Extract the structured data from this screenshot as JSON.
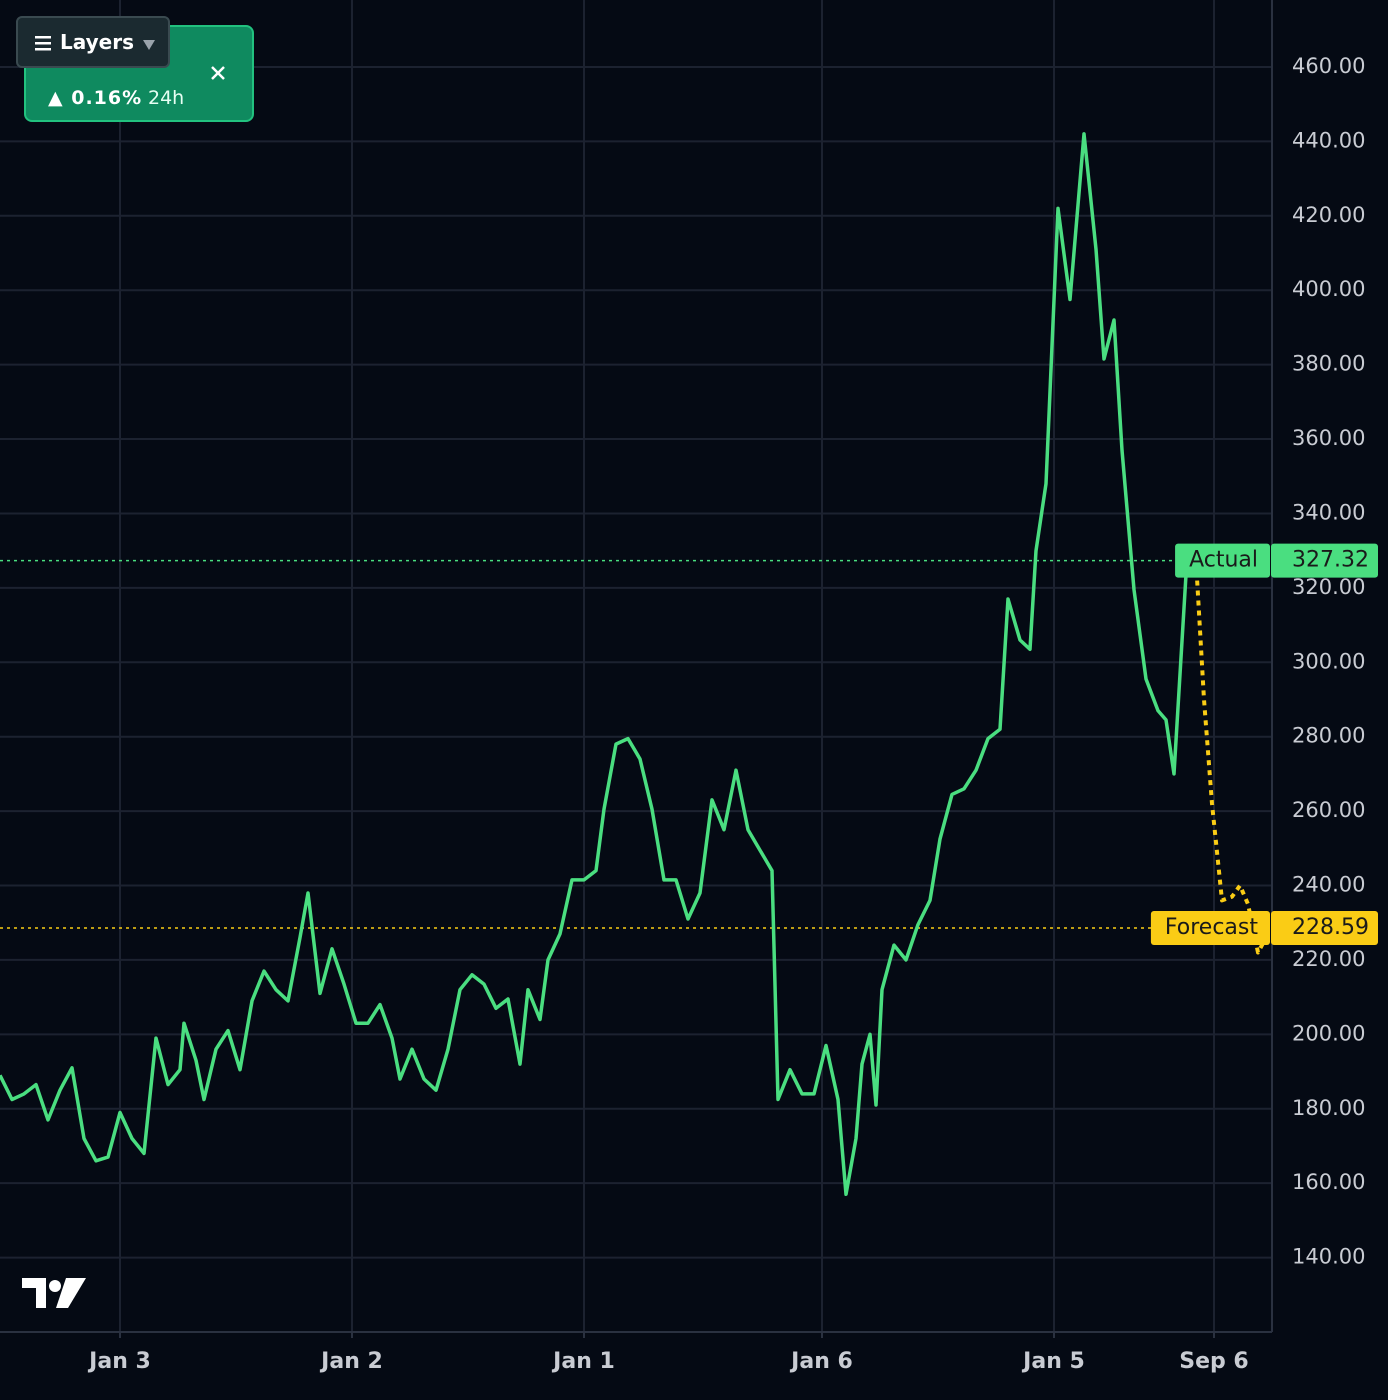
{
  "ui": {
    "layers_button": "Layers",
    "change": "▲ 0.16%",
    "period": "24h"
  },
  "chart_data": {
    "type": "line",
    "xlim": [
      0,
      1272
    ],
    "ylim": [
      120,
      478
    ],
    "xticks": [
      {
        "value": 120,
        "label": "Jan 3"
      },
      {
        "value": 352,
        "label": "Jan 2"
      },
      {
        "value": 584,
        "label": "Jan 1"
      },
      {
        "value": 822,
        "label": "Jan 6"
      },
      {
        "value": 1054,
        "label": "Jan 5"
      },
      {
        "value": 1214,
        "label": "Sep 6"
      }
    ],
    "yticks": [
      {
        "value": 140,
        "label": "140.00"
      },
      {
        "value": 160,
        "label": "160.00"
      },
      {
        "value": 180,
        "label": "180.00"
      },
      {
        "value": 200,
        "label": "200.00"
      },
      {
        "value": 220,
        "label": "220.00"
      },
      {
        "value": 240,
        "label": "240.00"
      },
      {
        "value": 260,
        "label": "260.00"
      },
      {
        "value": 280,
        "label": "280.00"
      },
      {
        "value": 300,
        "label": "300.00"
      },
      {
        "value": 320,
        "label": "320.00"
      },
      {
        "value": 340,
        "label": "340.00"
      },
      {
        "value": 360,
        "label": "360.00"
      },
      {
        "value": 380,
        "label": "380.00"
      },
      {
        "value": 400,
        "label": "400.00"
      },
      {
        "value": 420,
        "label": "420.00"
      },
      {
        "value": 440,
        "label": "440.00"
      },
      {
        "value": 460,
        "label": "460.00"
      }
    ],
    "grid": true,
    "series": [
      {
        "color": "#4ade80",
        "style": "solid",
        "x": [
          0,
          12,
          24,
          36,
          48,
          60,
          72,
          84,
          96,
          108,
          120,
          132,
          144,
          156,
          168,
          180,
          184,
          196,
          204,
          216,
          228,
          240,
          252,
          264,
          276,
          288,
          300,
          308,
          320,
          332,
          344,
          356,
          368,
          380,
          392,
          400,
          412,
          424,
          436,
          448,
          460,
          472,
          484,
          496,
          508,
          520,
          528,
          540,
          548,
          560,
          572,
          584,
          596,
          604,
          616,
          628,
          640,
          652,
          664,
          676,
          688,
          700,
          712,
          724,
          736,
          748,
          760,
          772,
          778,
          790,
          802,
          814,
          826,
          838,
          846,
          856,
          862,
          870,
          876,
          882,
          894,
          906,
          918,
          930,
          940,
          952,
          964,
          976,
          988,
          1000,
          1008,
          1020,
          1030,
          1036,
          1046,
          1058,
          1070,
          1084,
          1096,
          1104,
          1114,
          1122,
          1134,
          1146,
          1158,
          1166,
          1174,
          1186,
          1196
        ],
        "values": [
          189,
          182.5,
          184,
          186.5,
          177,
          185,
          191,
          172,
          166,
          167,
          179,
          172,
          168,
          199,
          186.5,
          190.5,
          203,
          193,
          182.5,
          196,
          201,
          190.5,
          209,
          217,
          212,
          209,
          226,
          238,
          211,
          223,
          213.5,
          203,
          203,
          208,
          199,
          188,
          196,
          188,
          185,
          196,
          212,
          216,
          213.5,
          207,
          209.5,
          192,
          212,
          204,
          220,
          227,
          241.5,
          241.5,
          244,
          260.5,
          278,
          279.5,
          274,
          260.5,
          241.5,
          241.5,
          231,
          238,
          263,
          255,
          271,
          255,
          249.5,
          244,
          182.5,
          190.5,
          184,
          184,
          197,
          182.5,
          157,
          172,
          192,
          200,
          181,
          212,
          224,
          220,
          229.5,
          236,
          252.5,
          264.5,
          266,
          271,
          279.5,
          282,
          317,
          306,
          303.5,
          330,
          348,
          422,
          397.5,
          442,
          411,
          381.5,
          392,
          357,
          319.5,
          295.5,
          287,
          284.5,
          270,
          323.5,
          327.32
        ]
      },
      {
        "color": "#facc15",
        "style": "dotted",
        "x": [
          1196,
          1204,
          1212,
          1222,
          1232,
          1240,
          1248,
          1258,
          1266
        ],
        "values": [
          327.32,
          290,
          262,
          236,
          237,
          240,
          235,
          222,
          226
        ]
      }
    ],
    "price_lines": [
      {
        "label": "Actual",
        "value": 327.32,
        "color": "#4ade80"
      },
      {
        "label": "Forecast",
        "value": 228.59,
        "color": "#facc15"
      }
    ]
  }
}
